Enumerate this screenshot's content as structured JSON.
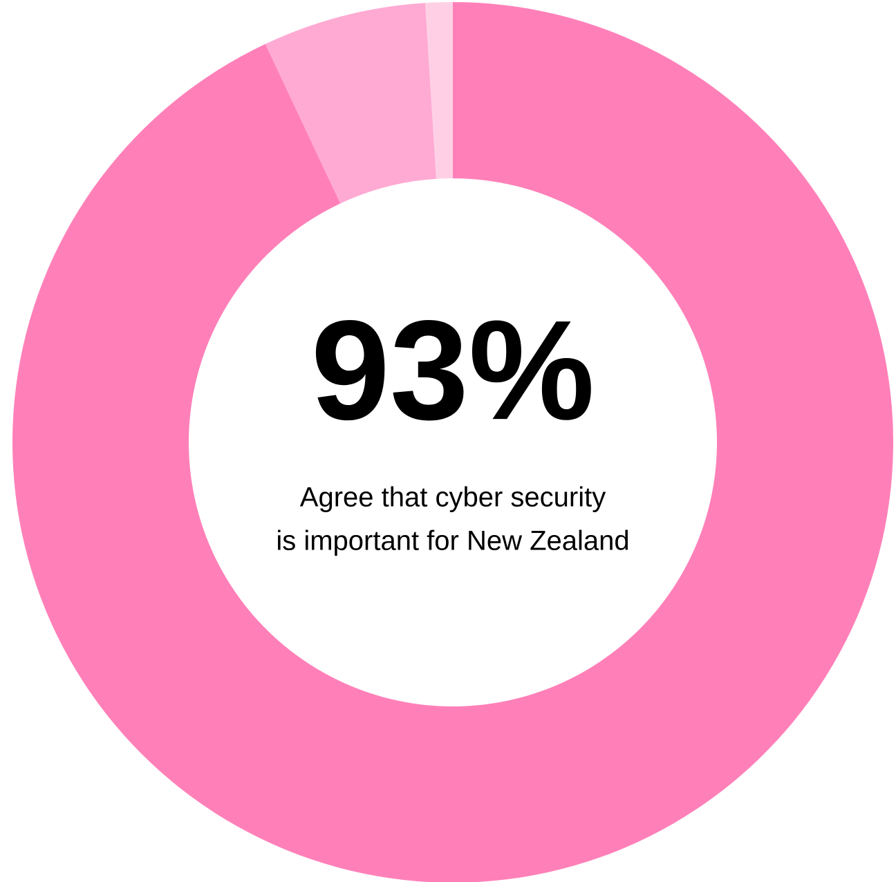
{
  "chart_data": {
    "type": "donut",
    "values": [
      93,
      6,
      1
    ],
    "value_labels": [
      "93%",
      null,
      null
    ],
    "colors": [
      "#ff80b9",
      "#ffaad3",
      "#ffd0e5"
    ],
    "caption": [
      "Agree that cyber security",
      "is important for New Zealand"
    ]
  }
}
